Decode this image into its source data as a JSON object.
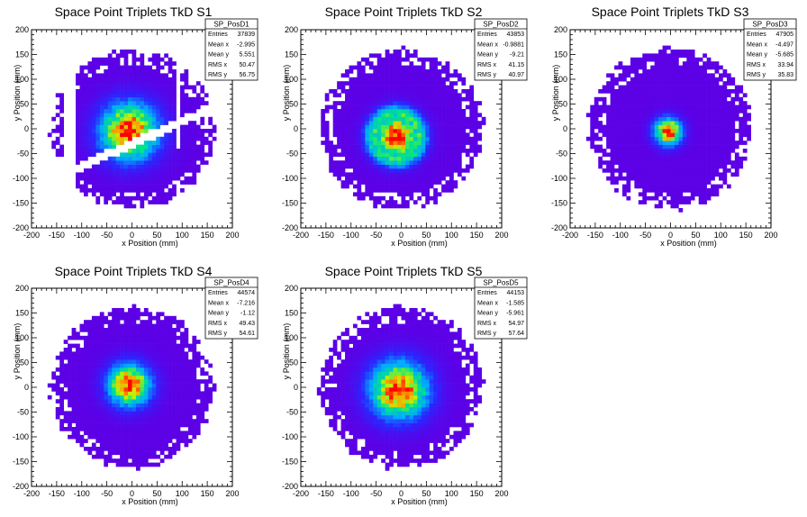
{
  "chart_data": [
    {
      "type": "heatmap",
      "title": "Space Point Triplets TkD S1",
      "xlabel": "x Position (mm)",
      "ylabel": "y Position (mm)",
      "xlim": [
        -200,
        200
      ],
      "ylim": [
        -200,
        200
      ],
      "xticks": [
        "-200",
        "-150",
        "-100",
        "-50",
        "0",
        "50",
        "100",
        "150",
        "200"
      ],
      "yticks": [
        "-200",
        "-150",
        "-100",
        "-50",
        "0",
        "50",
        "100",
        "150",
        "200"
      ],
      "stats": {
        "name": "SP_PosD1",
        "rows": [
          {
            "label": "Entries",
            "value": "37839"
          },
          {
            "label": "Mean x",
            "value": "-2.995"
          },
          {
            "label": "Mean y",
            "value": "5.551"
          },
          {
            "label": "RMS x",
            "value": "50.47"
          },
          {
            "label": "RMS y",
            "value": "56.75"
          }
        ]
      }
    },
    {
      "type": "heatmap",
      "title": "Space Point Triplets TkD S2",
      "xlabel": "x Position (mm)",
      "ylabel": "y Position (mm)",
      "xlim": [
        -200,
        200
      ],
      "ylim": [
        -200,
        200
      ],
      "xticks": [
        "-200",
        "-150",
        "-100",
        "-50",
        "0",
        "50",
        "100",
        "150",
        "200"
      ],
      "yticks": [
        "-200",
        "-150",
        "-100",
        "-50",
        "0",
        "50",
        "100",
        "150",
        "200"
      ],
      "stats": {
        "name": "SP_PosD2",
        "rows": [
          {
            "label": "Entries",
            "value": "43853"
          },
          {
            "label": "Mean x",
            "value": "-0.9881"
          },
          {
            "label": "Mean y",
            "value": "-9.21"
          },
          {
            "label": "RMS x",
            "value": "41.15"
          },
          {
            "label": "RMS y",
            "value": "40.97"
          }
        ]
      }
    },
    {
      "type": "heatmap",
      "title": "Space Point Triplets TkD S3",
      "xlabel": "x Position (mm)",
      "ylabel": "y Position (mm)",
      "xlim": [
        -200,
        200
      ],
      "ylim": [
        -200,
        200
      ],
      "xticks": [
        "-200",
        "-150",
        "-100",
        "-50",
        "0",
        "50",
        "100",
        "150",
        "200"
      ],
      "yticks": [
        "-200",
        "-150",
        "-100",
        "-50",
        "0",
        "50",
        "100",
        "150",
        "200"
      ],
      "stats": {
        "name": "SP_PosD3",
        "rows": [
          {
            "label": "Entries",
            "value": "47905"
          },
          {
            "label": "Mean x",
            "value": "-4.497"
          },
          {
            "label": "Mean y",
            "value": "-5.685"
          },
          {
            "label": "RMS x",
            "value": "33.94"
          },
          {
            "label": "RMS y",
            "value": "35.83"
          }
        ]
      }
    },
    {
      "type": "heatmap",
      "title": "Space Point Triplets TkD S4",
      "xlabel": "x Position (mm)",
      "ylabel": "y Position (mm)",
      "xlim": [
        -200,
        200
      ],
      "ylim": [
        -200,
        200
      ],
      "xticks": [
        "-200",
        "-150",
        "-100",
        "-50",
        "0",
        "50",
        "100",
        "150",
        "200"
      ],
      "yticks": [
        "-200",
        "-150",
        "-100",
        "-50",
        "0",
        "50",
        "100",
        "150",
        "200"
      ],
      "stats": {
        "name": "SP_PosD4",
        "rows": [
          {
            "label": "Entries",
            "value": "44574"
          },
          {
            "label": "Mean x",
            "value": "-7.216"
          },
          {
            "label": "Mean y",
            "value": "-1.12"
          },
          {
            "label": "RMS x",
            "value": "49.43"
          },
          {
            "label": "RMS y",
            "value": "54.61"
          }
        ]
      }
    },
    {
      "type": "heatmap",
      "title": "Space Point Triplets TkD S5",
      "xlabel": "x Position (mm)",
      "ylabel": "y Position (mm)",
      "xlim": [
        -200,
        200
      ],
      "ylim": [
        -200,
        200
      ],
      "xticks": [
        "-200",
        "-150",
        "-100",
        "-50",
        "0",
        "50",
        "100",
        "150",
        "200"
      ],
      "yticks": [
        "-200",
        "-150",
        "-100",
        "-50",
        "0",
        "50",
        "100",
        "150",
        "200"
      ],
      "stats": {
        "name": "SP_PosD5",
        "rows": [
          {
            "label": "Entries",
            "value": "44153"
          },
          {
            "label": "Mean x",
            "value": "-1.585"
          },
          {
            "label": "Mean y",
            "value": "-5.961"
          },
          {
            "label": "RMS x",
            "value": "54.97"
          },
          {
            "label": "RMS y",
            "value": "57.64"
          }
        ]
      }
    }
  ]
}
